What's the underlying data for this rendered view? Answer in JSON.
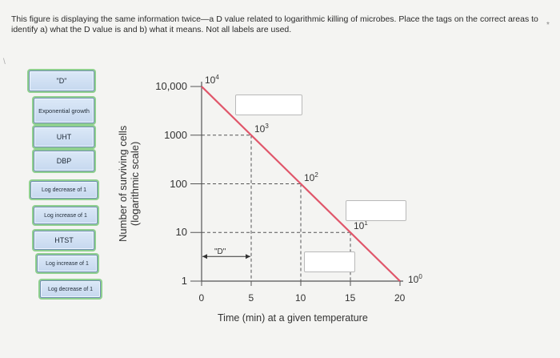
{
  "question": {
    "text": "This figure is displaying the same information twice—a D value related to logarithmic killing of microbes. Place the tags on the correct areas to identify a) what the D value is and b) what it means. Not all labels are used.",
    "required_mark": "*",
    "left_chevron": "\\"
  },
  "tags": [
    {
      "id": "tag-d",
      "label": "\"D\""
    },
    {
      "id": "tag-exponential-growth",
      "label": "Exponential growth"
    },
    {
      "id": "tag-uht",
      "label": "UHT"
    },
    {
      "id": "tag-dbp",
      "label": "DBP"
    },
    {
      "id": "tag-log-decrease-1a",
      "label": "Log decrease of 1"
    },
    {
      "id": "tag-log-increase-1a",
      "label": "Log increase of 1"
    },
    {
      "id": "tag-htst",
      "label": "HTST"
    },
    {
      "id": "tag-log-increase-1b",
      "label": "Log increase of 1"
    },
    {
      "id": "tag-log-decrease-1b",
      "label": "Log decrease of 1"
    }
  ],
  "chart_data": {
    "type": "line",
    "title": "",
    "xlabel": "Time (min) at a given temperature",
    "ylabel": "Number of surviving cells (logarithmic scale)",
    "ylabel_line1": "Number of surviving cells",
    "ylabel_line2": "(logarithmic scale)",
    "y_scale": "log",
    "xlim": [
      0,
      20
    ],
    "ylim": [
      1,
      10000
    ],
    "x_ticks": [
      0,
      5,
      10,
      15,
      20
    ],
    "x_tick_labels": [
      "0",
      "5",
      "10",
      "15",
      "20"
    ],
    "y_ticks": [
      10000,
      1000,
      100,
      10,
      1
    ],
    "y_tick_labels": [
      "10,000",
      "1000",
      "100",
      "10",
      "1"
    ],
    "right_labels": [
      {
        "base": "10",
        "exp": "4",
        "x": 0,
        "y": 10000
      },
      {
        "base": "10",
        "exp": "3",
        "x": 5,
        "y": 1000
      },
      {
        "base": "10",
        "exp": "2",
        "x": 10,
        "y": 100
      },
      {
        "base": "10",
        "exp": "1",
        "x": 15,
        "y": 10
      },
      {
        "base": "10",
        "exp": "0",
        "x": 20,
        "y": 1
      }
    ],
    "series": [
      {
        "values_x": [
          0,
          20
        ],
        "values_y": [
          10000,
          1
        ],
        "color": "#e0566a"
      }
    ],
    "d_annotation": "\"D\"",
    "line_color": "#e0566a",
    "grid": "dashed guide lines"
  }
}
